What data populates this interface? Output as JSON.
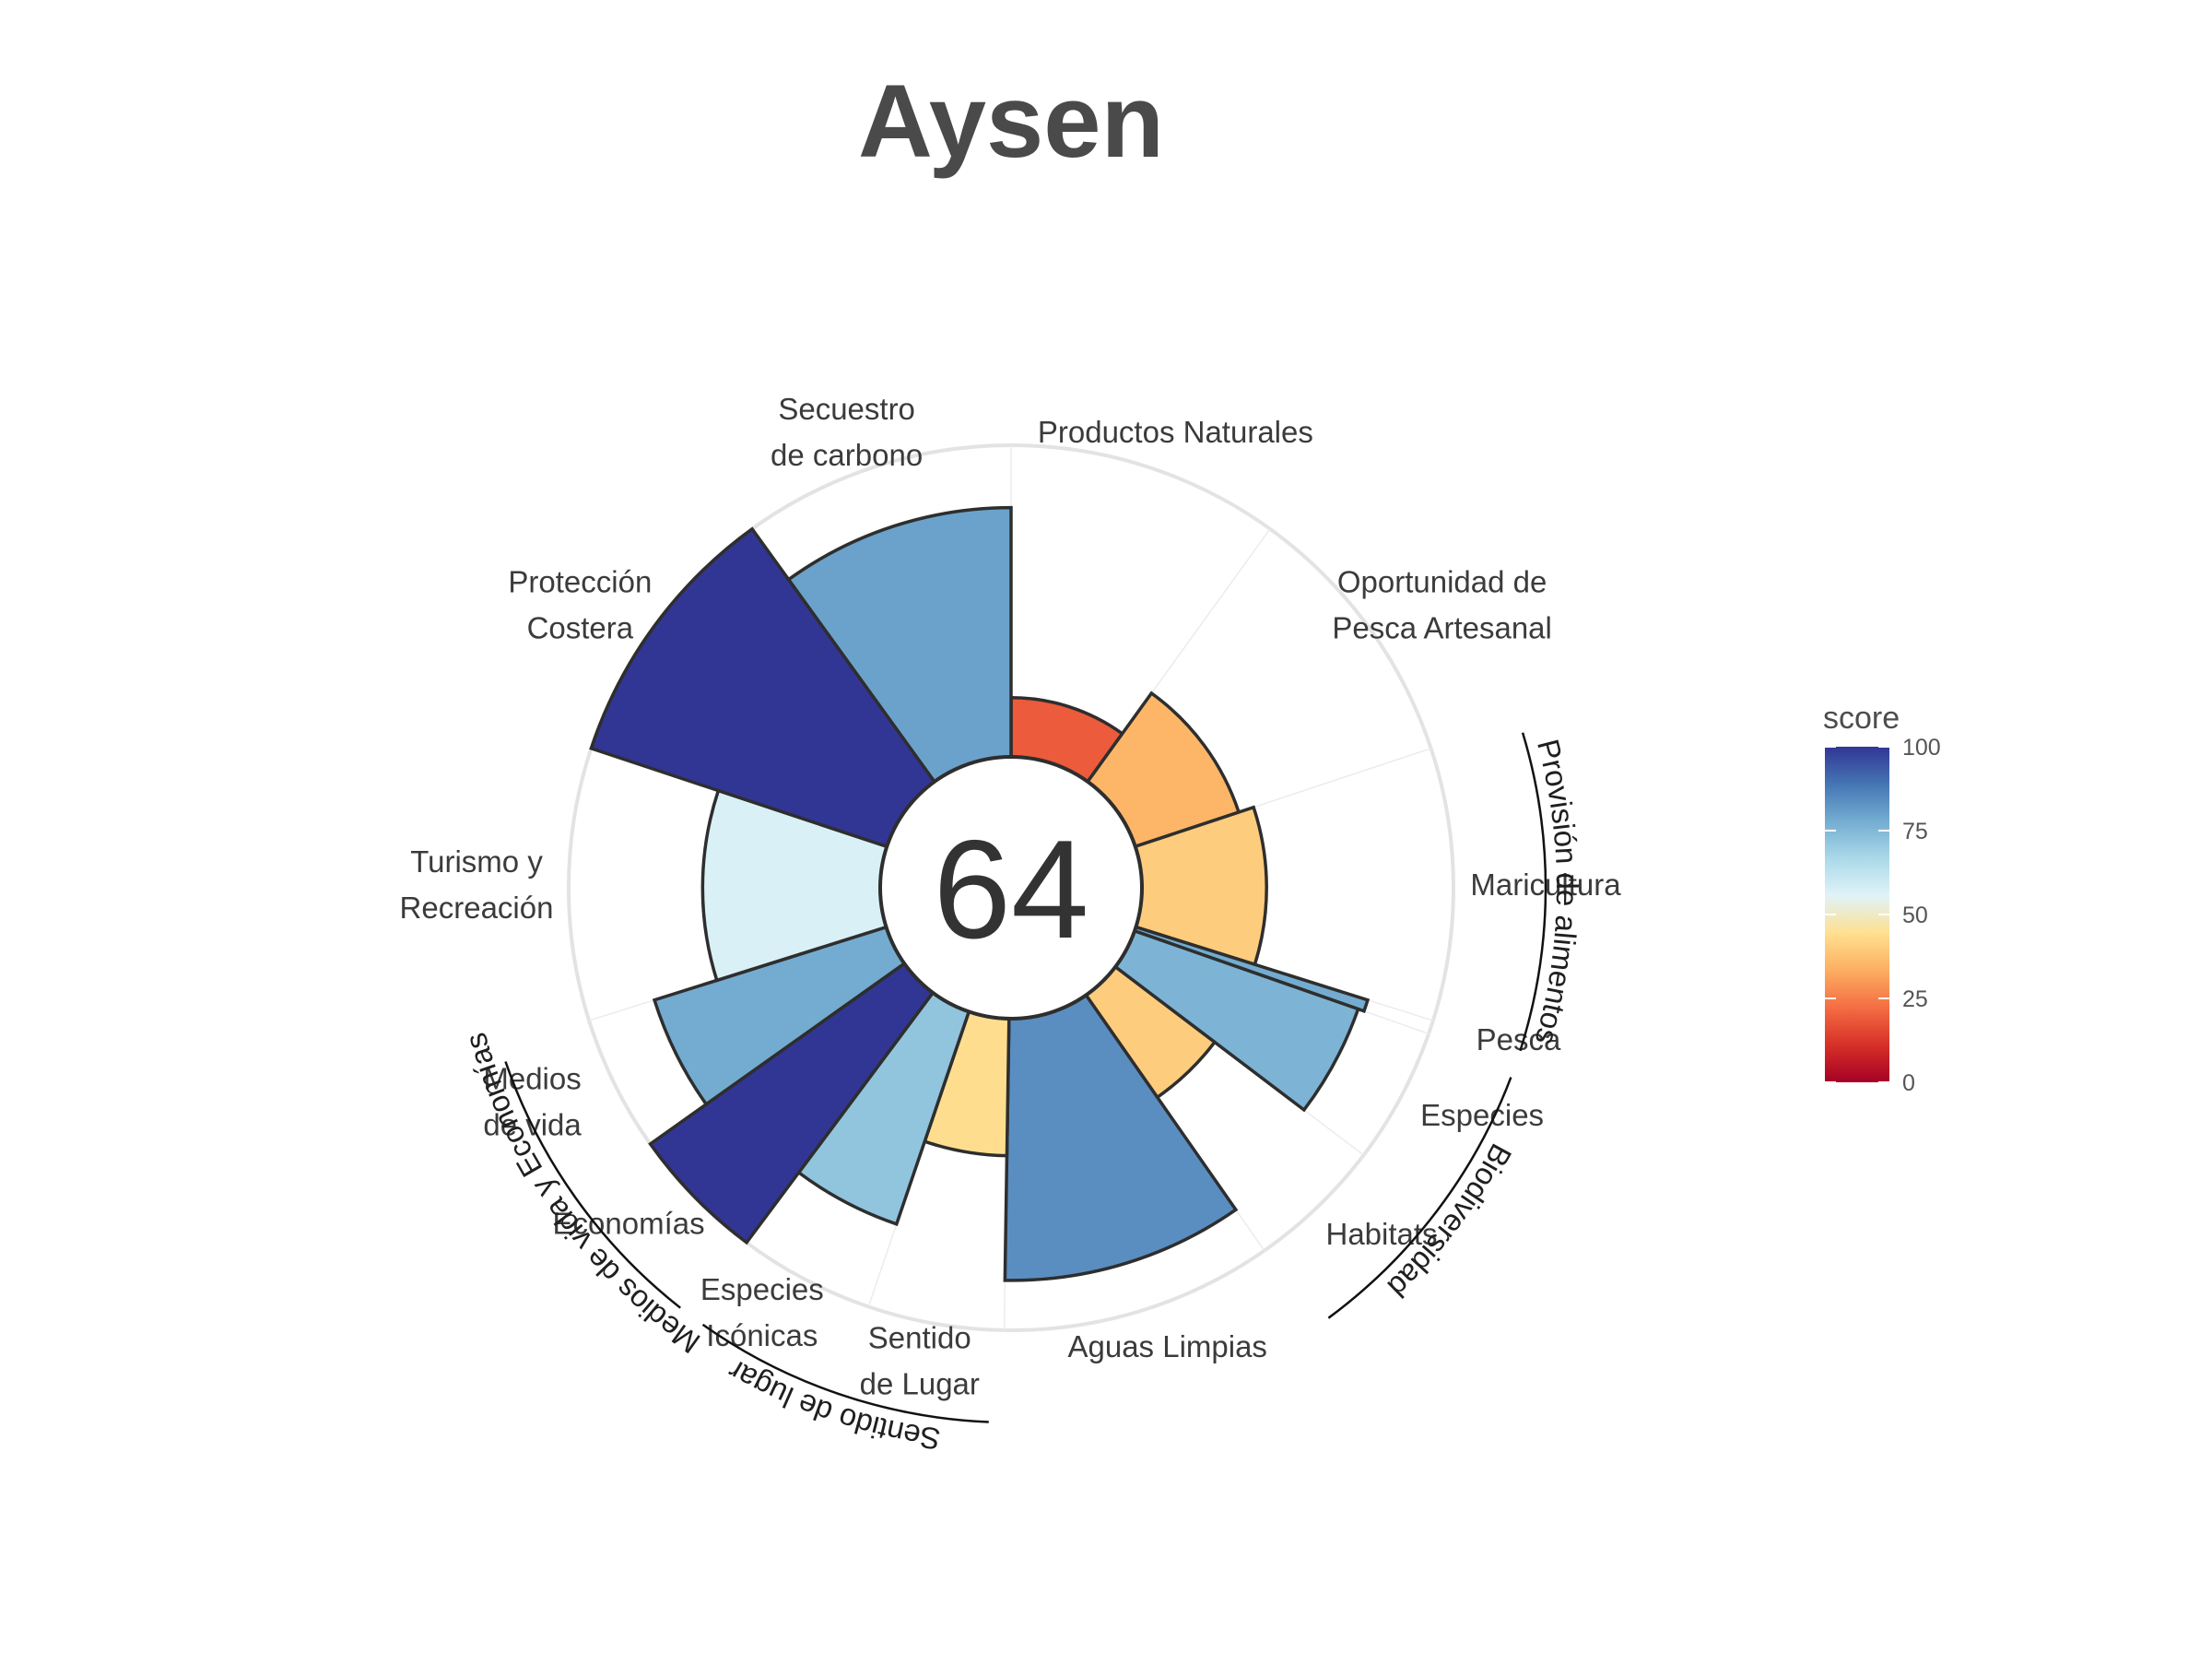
{
  "chart_data": {
    "type": "polar-bar",
    "title": "Aysen",
    "center_score": "64",
    "ylim": [
      0,
      100
    ],
    "categories": [
      {
        "label": "Productos Naturales",
        "score": 19,
        "weight": 1,
        "group": null
      },
      {
        "label": "Oportunidad de\nPesca Artesanal",
        "score": 35,
        "weight": 1,
        "group": null
      },
      {
        "label": "Maricultura",
        "score": 40,
        "weight": 1,
        "group": "Provisión de alimentos"
      },
      {
        "label": "Pesca",
        "score": 78,
        "weight": 0.05,
        "group": "Provisión de alimentos"
      },
      {
        "label": "Especies",
        "score": 76,
        "weight": 0.5,
        "group": "Biodiversidad"
      },
      {
        "label": "Habitats",
        "score": 40,
        "weight": 0.5,
        "group": "Biodiversidad"
      },
      {
        "label": "Aguas Limpias",
        "score": 84,
        "weight": 1,
        "group": null
      },
      {
        "label": "Sentido\nde Lugar",
        "score": 44,
        "weight": 0.5,
        "group": "Sentido de lugar"
      },
      {
        "label": "Especies\nIcónicas",
        "score": 72,
        "weight": 0.5,
        "group": "Sentido de lugar"
      },
      {
        "label": "Economías",
        "score": 100,
        "weight": 0.5,
        "group": "Medios de vida y Economías"
      },
      {
        "label": "Medios\nde vida",
        "score": 78,
        "weight": 0.5,
        "group": "Medios de vida y Economías"
      },
      {
        "label": "Turismo y\nRecreación",
        "score": 57,
        "weight": 1,
        "group": null
      },
      {
        "label": "Protección\nCostera",
        "score": 100,
        "weight": 1,
        "group": null
      },
      {
        "label": "Secuestro\nde carbono",
        "score": 80,
        "weight": 1,
        "group": null
      }
    ],
    "groups": [
      "Provisión de alimentos",
      "Biodiversidad",
      "Sentido de lugar",
      "Medios de vida y Economías"
    ],
    "legend": {
      "title": "score",
      "ticks": [
        0,
        25,
        50,
        75,
        100
      ],
      "placement": "right",
      "colors": [
        "#a50026",
        "#d73027",
        "#f46d43",
        "#fdae61",
        "#fee090",
        "#e0f3f8",
        "#abd9e9",
        "#74add1",
        "#4575b4",
        "#313695"
      ]
    }
  }
}
